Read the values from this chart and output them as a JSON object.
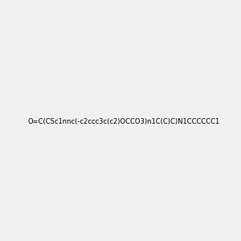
{
  "smiles": "O=C(CSc1nnc(-c2ccc3c(c2)OCCO3)n1C(C)C)N1CCCCCC1",
  "image_size": 300,
  "background_color": "#f0f0f0",
  "atom_colors": {
    "N": "blue",
    "O": "red",
    "S": "#cccc00"
  }
}
